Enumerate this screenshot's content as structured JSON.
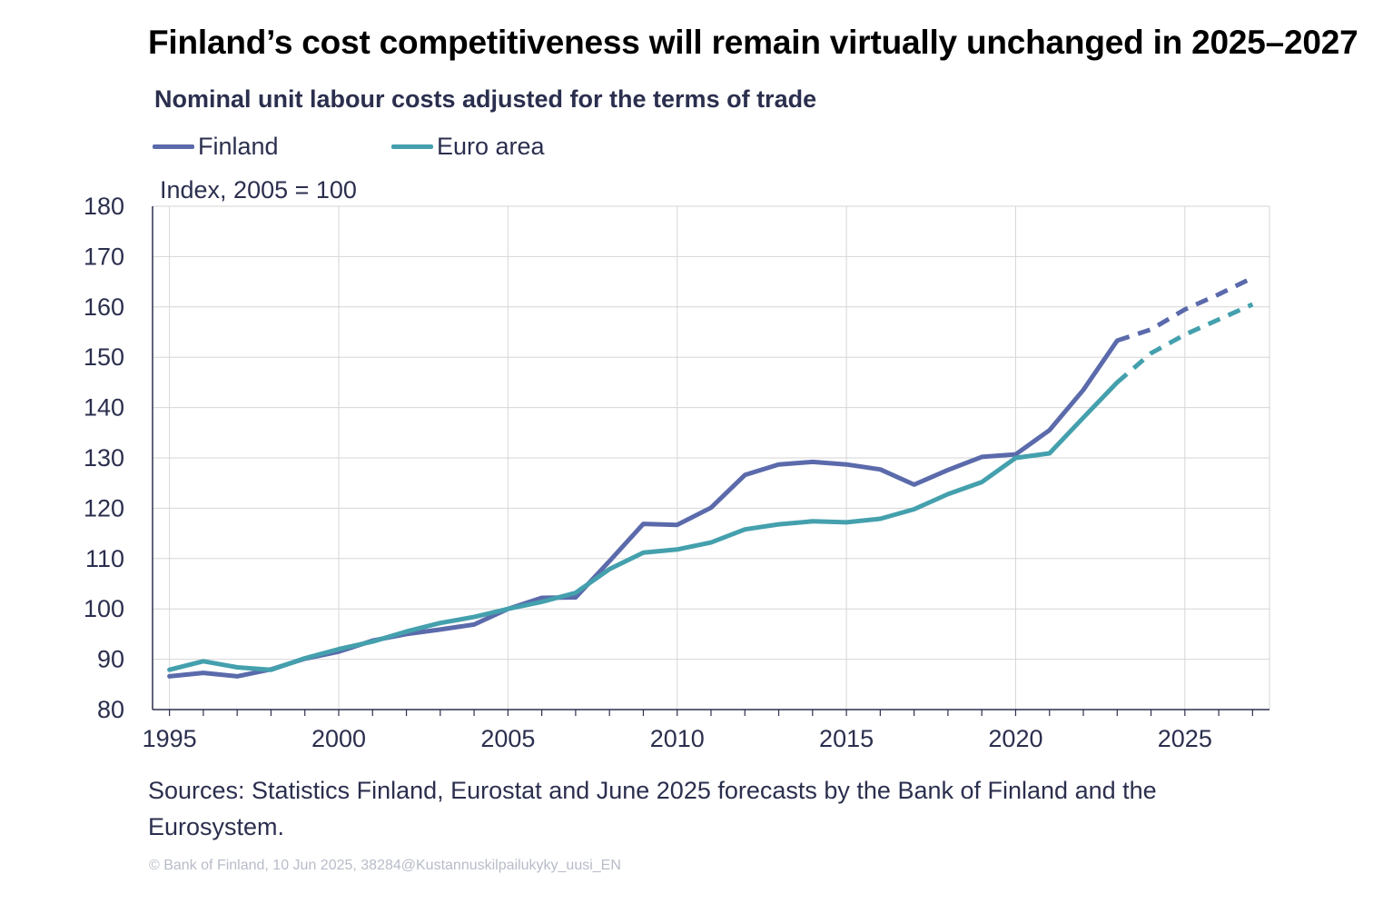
{
  "colors": {
    "finland": "#5b6aab",
    "euro_area": "#44a0ad",
    "text": "#2b2f4e",
    "grid": "#d6d6d6",
    "axis": "#2b2f4e"
  },
  "chart_data": {
    "type": "line",
    "title": "Finland’s cost competitiveness will remain virtually unchanged in 2025–2027",
    "subtitle": "Nominal unit labour costs adjusted for the terms of trade",
    "ylabel": "Index, 2005 = 100",
    "xlabel": "",
    "xlim": [
      1994.5,
      2027.5
    ],
    "ylim": [
      80,
      180
    ],
    "y_ticks": [
      "80",
      "90",
      "100",
      "110",
      "120",
      "130",
      "140",
      "150",
      "160",
      "170",
      "180"
    ],
    "x_tick_labels": [
      "1995",
      "2000",
      "2005",
      "2010",
      "2015",
      "2020",
      "2025"
    ],
    "grid": true,
    "legend_position": "top-left",
    "forecast_from": 2023,
    "series": [
      {
        "name": "Finland",
        "color": "#5b6aab",
        "x": [
          1995,
          1996,
          1997,
          1998,
          1999,
          2000,
          2001,
          2002,
          2003,
          2004,
          2005,
          2006,
          2007,
          2008,
          2009,
          2010,
          2011,
          2012,
          2013,
          2014,
          2015,
          2016,
          2017,
          2018,
          2019,
          2020,
          2021,
          2022,
          2023,
          2024,
          2025,
          2026,
          2027
        ],
        "values": [
          86.6,
          87.3,
          86.6,
          88.0,
          90.1,
          91.5,
          93.7,
          95.0,
          95.9,
          96.9,
          100.0,
          102.2,
          102.3,
          109.5,
          116.9,
          116.7,
          120.1,
          126.6,
          128.7,
          129.2,
          128.7,
          127.7,
          124.7,
          127.6,
          130.2,
          130.7,
          135.5,
          143.5,
          153.3,
          155.5,
          159.5,
          162.5,
          165.8
        ]
      },
      {
        "name": "Euro area",
        "color": "#44a0ad",
        "x": [
          1995,
          1996,
          1997,
          1998,
          1999,
          2000,
          2001,
          2002,
          2003,
          2004,
          2005,
          2006,
          2007,
          2008,
          2009,
          2010,
          2011,
          2012,
          2013,
          2014,
          2015,
          2016,
          2017,
          2018,
          2019,
          2020,
          2021,
          2022,
          2023,
          2024,
          2025,
          2026,
          2027
        ],
        "values": [
          87.9,
          89.6,
          88.4,
          87.9,
          90.2,
          92.0,
          93.5,
          95.5,
          97.2,
          98.4,
          100.0,
          101.4,
          103.2,
          107.9,
          111.2,
          111.8,
          113.2,
          115.8,
          116.8,
          117.4,
          117.2,
          117.9,
          119.8,
          122.8,
          125.2,
          130.0,
          130.9,
          138.0,
          145.0,
          150.8,
          154.5,
          157.5,
          160.5
        ]
      }
    ]
  },
  "sources": "Sources: Statistics Finland, Eurostat and June 2025 forecasts by the Bank of Finland and the Eurosystem.",
  "copyright": "© Bank of Finland, 10 Jun 2025, 38284@Kustannuskilpailukyky_uusi_EN"
}
